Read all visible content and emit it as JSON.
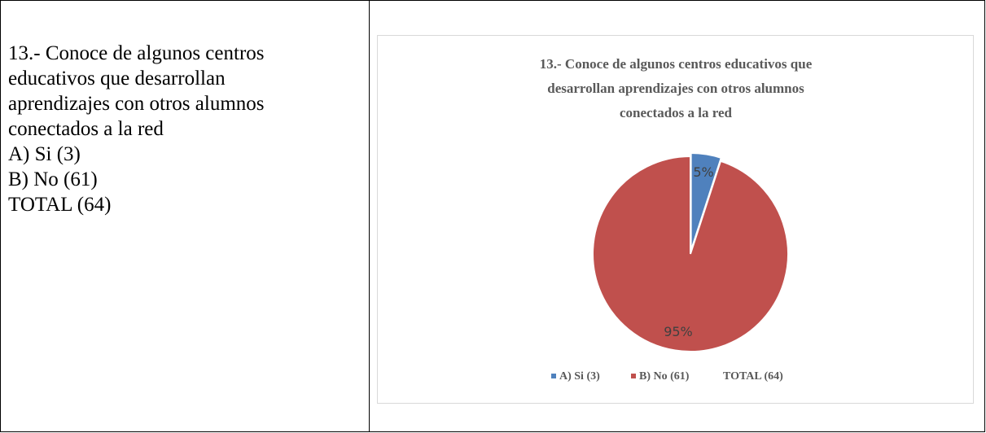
{
  "table": {
    "text": [
      "13.- Conoce de algunos centros",
      "educativos que desarrollan",
      "aprendizajes con otros alumnos",
      "conectados a la red",
      "A) Si (3)",
      "B) No (61)",
      "TOTAL (64)"
    ]
  },
  "chart_data": {
    "type": "pie",
    "title": [
      "13.- Conoce de algunos centros educativos que",
      "desarrollan  aprendizajes con otros  alumnos",
      "conectados a la red"
    ],
    "categories": [
      "A) Si (3)",
      "B) No (61)",
      "TOTAL (64)"
    ],
    "values": [
      5,
      95,
      null
    ],
    "value_labels": [
      "5%",
      "95%",
      null
    ],
    "colors": [
      "#4f81bd",
      "#c0504d",
      "#9bbb59"
    ],
    "legend": "bottom"
  }
}
